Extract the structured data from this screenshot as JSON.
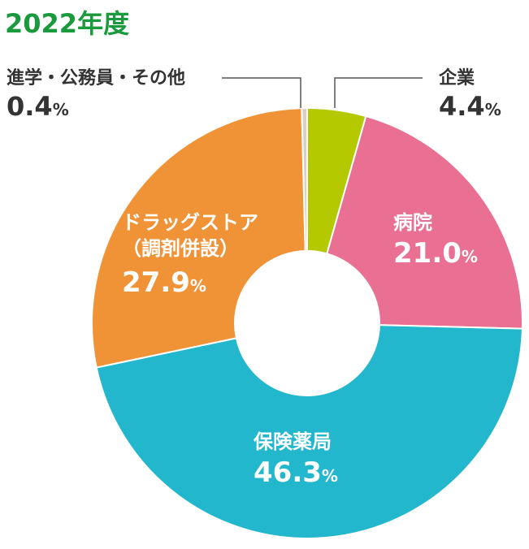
{
  "chart_data": {
    "type": "pie",
    "title": "2022年度",
    "unit": "%",
    "categories": [
      "企業",
      "病院",
      "保険薬局",
      "ドラッグストア（調剤併設）",
      "進学・公務員・その他"
    ],
    "values": [
      4.4,
      21.0,
      46.3,
      27.9,
      0.4
    ],
    "colors": [
      "#b5c900",
      "#e97092",
      "#23b7cd",
      "#f09236",
      "#d9d0c5"
    ],
    "labels": [
      {
        "name": "企業",
        "value": "4.4",
        "unit": "%"
      },
      {
        "name": "病院",
        "value": "21.0",
        "unit": "%"
      },
      {
        "name": "保険薬局",
        "value": "46.3",
        "unit": "%"
      },
      {
        "name_lines": [
          "ドラッグストア",
          "（調剤併設）"
        ],
        "value": "27.9",
        "unit": "%"
      },
      {
        "name": "進学・公務員・その他",
        "value": "0.4",
        "unit": "%"
      }
    ]
  }
}
